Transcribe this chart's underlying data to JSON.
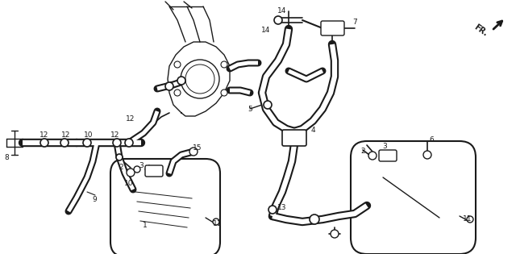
{
  "bg_color": "#ffffff",
  "line_color": "#1a1a1a",
  "fig_width": 6.4,
  "fig_height": 3.15,
  "dpi": 100,
  "label_fontsize": 6.5
}
